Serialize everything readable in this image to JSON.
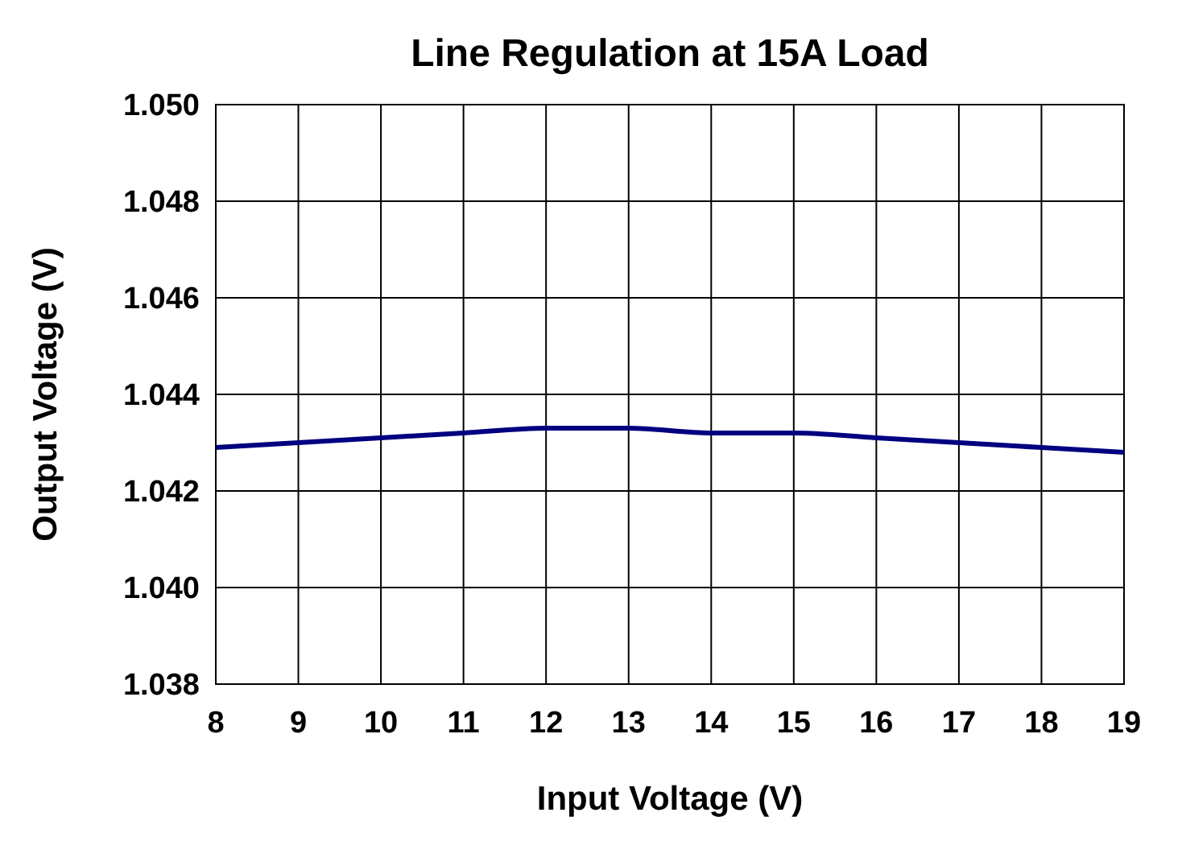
{
  "chart_data": {
    "type": "line",
    "title": "Line Regulation at 15A Load",
    "xlabel": "Input Voltage (V)",
    "ylabel": "Output Voltage (V)",
    "x": [
      8,
      9,
      10,
      11,
      12,
      13,
      14,
      15,
      16,
      17,
      18,
      19
    ],
    "series": [
      {
        "color": "#000080",
        "values": [
          1.0429,
          1.043,
          1.0431,
          1.0432,
          1.0433,
          1.0433,
          1.0432,
          1.0432,
          1.0431,
          1.043,
          1.0429,
          1.0428
        ]
      }
    ],
    "xlim": [
      8,
      19
    ],
    "xticks": [
      8,
      9,
      10,
      11,
      12,
      13,
      14,
      15,
      16,
      17,
      18,
      19
    ],
    "ylim": [
      1.038,
      1.05
    ],
    "yticks": [
      {
        "value": 1.038,
        "label": "1.038"
      },
      {
        "value": 1.04,
        "label": "1.040"
      },
      {
        "value": 1.042,
        "label": "1.042"
      },
      {
        "value": 1.044,
        "label": "1.044"
      },
      {
        "value": 1.046,
        "label": "1.046"
      },
      {
        "value": 1.048,
        "label": "1.048"
      },
      {
        "value": 1.05,
        "label": "1.050"
      }
    ],
    "grid": true,
    "marker": "none",
    "line_style": "solid"
  }
}
